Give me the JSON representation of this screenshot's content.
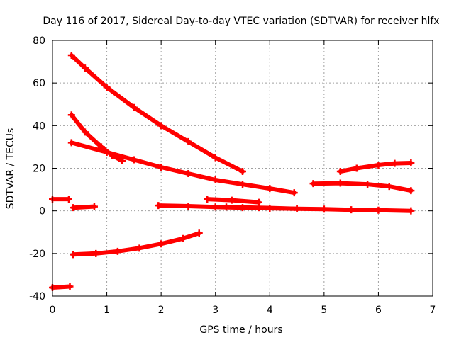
{
  "chart_data": {
    "type": "line",
    "title": "Day 116 of 2017, Sidereal Day-to-day VTEC variation (SDTVAR) for receiver hlfx",
    "xlabel": "GPS time / hours",
    "ylabel": "SDTVAR / TECUs",
    "xlim": [
      0,
      7
    ],
    "ylim": [
      -40,
      80
    ],
    "xticks": [
      "0",
      "1",
      "2",
      "3",
      "4",
      "5",
      "6",
      "7"
    ],
    "yticks": [
      "-40",
      "-20",
      "0",
      "20",
      "40",
      "60",
      "80"
    ],
    "grid": true,
    "legend": "none",
    "color": "#ff0000",
    "series": [
      {
        "x": [
          0.35,
          0.6,
          1.0,
          1.5,
          2.0,
          2.5,
          3.0,
          3.5
        ],
        "y": [
          73,
          67,
          58,
          48.5,
          40,
          32.5,
          25,
          18.5
        ]
      },
      {
        "x": [
          0.35,
          0.6,
          0.9,
          1.1,
          1.28
        ],
        "y": [
          45,
          37,
          30,
          26,
          23.5
        ]
      },
      {
        "x": [
          0.35,
          1.0,
          1.5,
          2.0,
          2.5,
          3.0,
          3.5,
          4.0,
          4.45
        ],
        "y": [
          32,
          27.5,
          24,
          20.5,
          17.5,
          14.5,
          12.5,
          10.5,
          8.5
        ]
      },
      {
        "x": [
          0.0,
          0.3
        ],
        "y": [
          5.5,
          5.5
        ]
      },
      {
        "x": [
          0.38,
          0.77
        ],
        "y": [
          1.5,
          2
        ]
      },
      {
        "x": [
          1.95,
          2.5,
          3.0,
          3.5,
          4.0,
          4.5,
          5.0,
          5.5,
          6.0,
          6.6
        ],
        "y": [
          2.5,
          2.2,
          1.8,
          1.5,
          1.2,
          1.0,
          0.8,
          0.5,
          0.3,
          0
        ]
      },
      {
        "x": [
          2.85,
          3.3,
          3.8
        ],
        "y": [
          5.5,
          5,
          4
        ]
      },
      {
        "x": [
          3.2,
          3.8,
          4.5
        ],
        "y": [
          1.8,
          1.5,
          1.0
        ]
      },
      {
        "x": [
          4.8,
          5.3,
          5.8,
          6.2,
          6.6
        ],
        "y": [
          12.8,
          13,
          12.5,
          11.5,
          9.5
        ]
      },
      {
        "x": [
          5.3,
          5.6,
          6.0,
          6.3,
          6.6
        ],
        "y": [
          18.5,
          20,
          21.5,
          22.3,
          22.5
        ]
      },
      {
        "x": [
          0.38,
          0.8,
          1.2,
          1.6,
          2.0,
          2.4,
          2.7
        ],
        "y": [
          -20.5,
          -20,
          -19,
          -17.5,
          -15.5,
          -13,
          -10.5
        ]
      },
      {
        "x": [
          0.0,
          0.32
        ],
        "y": [
          -36,
          -35.5
        ]
      }
    ]
  }
}
